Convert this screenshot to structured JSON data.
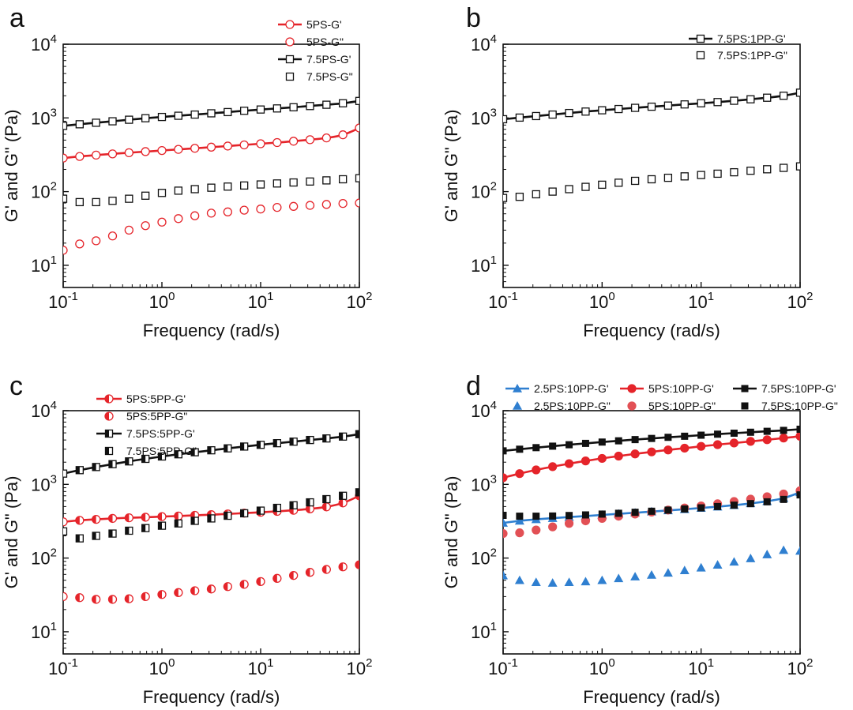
{
  "colors": {
    "red": "#e5242a",
    "black": "#111111",
    "blue": "#2f7fd0",
    "red_light": "#e25055"
  },
  "chart_data": [
    {
      "panel": "a",
      "type": "line",
      "scale": "log-log",
      "xlabel": "Frequency (rad/s)",
      "ylabel": "G' and G\" (Pa)",
      "xlim": [
        0.1,
        100
      ],
      "ylim": [
        5,
        10000
      ],
      "x_ticks": [
        0.1,
        1,
        10,
        100
      ],
      "y_ticks": [
        10,
        100,
        1000,
        10000
      ],
      "legend_position": "top-right",
      "legend_layout": "vertical",
      "x": [
        0.1,
        0.1468,
        0.2154,
        0.3162,
        0.4642,
        0.6813,
        1,
        1.468,
        2.154,
        3.162,
        4.642,
        6.813,
        10,
        14.68,
        21.54,
        31.62,
        46.42,
        68.13,
        100
      ],
      "series": [
        {
          "name": "5PS-G'",
          "color": "#e5242a",
          "marker": "circle",
          "fill": "open",
          "line": true,
          "values": [
            285,
            300,
            313,
            325,
            337,
            349,
            361,
            374,
            387,
            401,
            415,
            430,
            446,
            463,
            483,
            506,
            535,
            590,
            730
          ]
        },
        {
          "name": "5PS-G\"",
          "color": "#e5242a",
          "marker": "circle",
          "fill": "open",
          "line": false,
          "values": [
            16,
            19.5,
            21.5,
            25,
            30,
            34.5,
            38.5,
            43,
            47,
            51,
            53,
            56,
            58,
            61,
            63,
            65,
            67,
            69,
            70
          ]
        },
        {
          "name": "7.5PS-G'",
          "color": "#111111",
          "marker": "square",
          "fill": "open",
          "line": true,
          "values": [
            780,
            820,
            860,
            900,
            945,
            990,
            1030,
            1070,
            1110,
            1155,
            1200,
            1250,
            1300,
            1345,
            1395,
            1450,
            1510,
            1580,
            1700
          ]
        },
        {
          "name": "7.5PS-G\"",
          "color": "#111111",
          "marker": "square",
          "fill": "open",
          "line": false,
          "values": [
            80,
            72,
            72,
            75,
            80,
            88,
            96,
            103,
            108,
            113,
            117,
            121,
            125,
            129,
            133,
            137,
            142,
            147,
            152
          ]
        }
      ]
    },
    {
      "panel": "b",
      "type": "line",
      "scale": "log-log",
      "xlabel": "Frequency (rad/s)",
      "ylabel": "G' and G\" (Pa)",
      "xlim": [
        0.1,
        100
      ],
      "ylim": [
        5,
        10000
      ],
      "x_ticks": [
        0.1,
        1,
        10,
        100
      ],
      "y_ticks": [
        10,
        100,
        1000,
        10000
      ],
      "legend_position": "top-right",
      "legend_layout": "vertical",
      "x": [
        0.1,
        0.1468,
        0.2154,
        0.3162,
        0.4642,
        0.6813,
        1,
        1.468,
        2.154,
        3.162,
        4.642,
        6.813,
        10,
        14.68,
        21.54,
        31.62,
        46.42,
        68.13,
        100
      ],
      "series": [
        {
          "name": "7.5PS:1PP-G'",
          "color": "#111111",
          "marker": "square",
          "fill": "open",
          "line": true,
          "values": [
            960,
            1010,
            1060,
            1110,
            1165,
            1220,
            1270,
            1320,
            1370,
            1420,
            1470,
            1525,
            1580,
            1640,
            1710,
            1790,
            1880,
            2000,
            2200
          ]
        },
        {
          "name": "7.5PS:1PP-G\"",
          "color": "#111111",
          "marker": "square",
          "fill": "open",
          "line": false,
          "values": [
            82,
            85,
            92,
            100,
            108,
            116,
            124,
            132,
            140,
            147,
            154,
            161,
            168,
            175,
            183,
            192,
            201,
            210,
            220
          ]
        }
      ]
    },
    {
      "panel": "c",
      "type": "line",
      "scale": "log-log",
      "xlabel": "Frequency (rad/s)",
      "ylabel": "G' and G\" (Pa)",
      "xlim": [
        0.1,
        100
      ],
      "ylim": [
        5,
        10000
      ],
      "x_ticks": [
        0.1,
        1,
        10,
        100
      ],
      "y_ticks": [
        10,
        100,
        1000,
        10000
      ],
      "legend_position": "top-left",
      "legend_layout": "vertical",
      "x": [
        0.1,
        0.1468,
        0.2154,
        0.3162,
        0.4642,
        0.6813,
        1,
        1.468,
        2.154,
        3.162,
        4.642,
        6.813,
        10,
        14.68,
        21.54,
        31.62,
        46.42,
        68.13,
        100
      ],
      "series": [
        {
          "name": "5PS:5PP-G'",
          "color": "#e5242a",
          "marker": "circle",
          "fill": "half",
          "line": true,
          "values": [
            310,
            325,
            335,
            345,
            352,
            358,
            365,
            372,
            380,
            388,
            397,
            407,
            418,
            430,
            445,
            465,
            495,
            560,
            700
          ]
        },
        {
          "name": "5PS:5PP-G\"",
          "color": "#e5242a",
          "marker": "circle",
          "fill": "half",
          "line": false,
          "values": [
            30,
            29,
            27.5,
            27.5,
            28,
            30,
            32,
            34,
            36,
            38,
            41,
            44,
            48,
            53,
            58,
            64,
            70,
            76,
            81
          ]
        },
        {
          "name": "7.5PS:5PP-G'",
          "color": "#111111",
          "marker": "square",
          "fill": "half",
          "line": true,
          "values": [
            1400,
            1560,
            1720,
            1880,
            2050,
            2220,
            2390,
            2560,
            2730,
            2900,
            3080,
            3260,
            3440,
            3620,
            3800,
            4000,
            4200,
            4450,
            4800
          ]
        },
        {
          "name": "7.5PS:5PP-G\"",
          "color": "#111111",
          "marker": "square",
          "fill": "half",
          "line": false,
          "values": [
            230,
            185,
            200,
            215,
            235,
            255,
            275,
            295,
            320,
            345,
            375,
            405,
            440,
            480,
            520,
            570,
            630,
            700,
            780
          ]
        }
      ]
    },
    {
      "panel": "d",
      "type": "line",
      "scale": "log-log",
      "xlabel": "Frequency (rad/s)",
      "ylabel": "G' and G\" (Pa)",
      "xlim": [
        0.1,
        100
      ],
      "ylim": [
        5,
        10000
      ],
      "x_ticks": [
        0.1,
        1,
        10,
        100
      ],
      "y_ticks": [
        10,
        100,
        1000,
        10000
      ],
      "legend_position": "top",
      "legend_layout": "three-columns",
      "x": [
        0.1,
        0.1468,
        0.2154,
        0.3162,
        0.4642,
        0.6813,
        1,
        1.468,
        2.154,
        3.162,
        4.642,
        6.813,
        10,
        14.68,
        21.54,
        31.62,
        46.42,
        68.13,
        100
      ],
      "series": [
        {
          "name": "2.5PS:10PP-G'",
          "color": "#2f7fd0",
          "marker": "triangle",
          "fill": "solid",
          "line": true,
          "values": [
            300,
            320,
            335,
            348,
            360,
            372,
            385,
            398,
            412,
            427,
            443,
            460,
            478,
            498,
            522,
            552,
            590,
            650,
            780
          ]
        },
        {
          "name": "2.5PS:10PP-G\"",
          "color": "#2f7fd0",
          "marker": "triangle",
          "fill": "solid",
          "line": false,
          "values": [
            58,
            50,
            47,
            46,
            47,
            48,
            50,
            53,
            56,
            59,
            63,
            68,
            74,
            81,
            89,
            99,
            112,
            128,
            125
          ]
        },
        {
          "name": "5PS:10PP-G'",
          "color": "#e5242a",
          "marker": "circle",
          "fill": "solid",
          "line": true,
          "values": [
            1230,
            1400,
            1570,
            1740,
            1910,
            2080,
            2250,
            2420,
            2590,
            2760,
            2930,
            3100,
            3280,
            3460,
            3640,
            3830,
            4030,
            4250,
            4500
          ]
        },
        {
          "name": "5PS:10PP-G\"",
          "color": "#e25055",
          "marker": "circle",
          "fill": "solid",
          "line": false,
          "values": [
            215,
            220,
            240,
            265,
            295,
            320,
            345,
            370,
            395,
            420,
            448,
            478,
            510,
            545,
            585,
            630,
            680,
            740,
            820
          ]
        },
        {
          "name": "7.5PS:10PP-G'",
          "color": "#111111",
          "marker": "square",
          "fill": "solid",
          "line": true,
          "values": [
            2850,
            3000,
            3150,
            3300,
            3450,
            3600,
            3750,
            3900,
            4050,
            4200,
            4350,
            4500,
            4650,
            4800,
            4950,
            5100,
            5250,
            5400,
            5600
          ]
        },
        {
          "name": "7.5PS:10PP-G\"",
          "color": "#111111",
          "marker": "square",
          "fill": "solid",
          "line": false,
          "values": [
            380,
            370,
            370,
            372,
            378,
            385,
            395,
            405,
            418,
            432,
            447,
            463,
            480,
            500,
            522,
            548,
            580,
            625,
            720
          ]
        }
      ]
    }
  ]
}
